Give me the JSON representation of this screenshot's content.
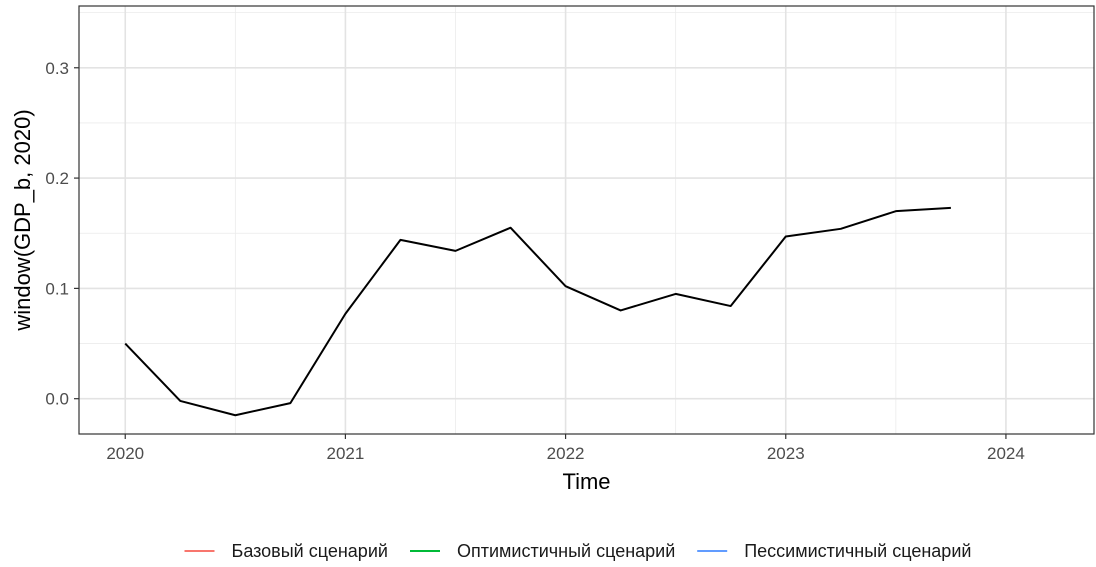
{
  "chart_data": {
    "type": "line",
    "title": "",
    "xlabel": "Time",
    "ylabel": "window(GDP_b, 2020)",
    "xlim": [
      2019.79,
      2024.4
    ],
    "ylim": [
      -0.032,
      0.356
    ],
    "x_ticks": [
      2020,
      2021,
      2022,
      2023,
      2024
    ],
    "x_tick_labels": [
      "2020",
      "2021",
      "2022",
      "2023",
      "2024"
    ],
    "y_ticks": [
      0.0,
      0.1,
      0.2,
      0.3
    ],
    "y_tick_labels": [
      "0.0",
      "0.1",
      "0.2",
      "0.3"
    ],
    "grid": true,
    "legend_position": "bottom",
    "series": [
      {
        "color": "#000000",
        "x": [
          2020.0,
          2020.25,
          2020.5,
          2020.75,
          2021.0,
          2021.25,
          2021.5,
          2021.75,
          2022.0,
          2022.25,
          2022.5,
          2022.75,
          2023.0,
          2023.25,
          2023.5,
          2023.75
        ],
        "y": [
          0.05,
          -0.002,
          -0.015,
          -0.004,
          0.077,
          0.144,
          0.134,
          0.155,
          0.102,
          0.08,
          0.095,
          0.084,
          0.147,
          0.154,
          0.17,
          0.173
        ]
      }
    ],
    "legend": [
      {
        "label": "Базовый сценарий",
        "color": "#F8766D"
      },
      {
        "label": "Оптимистичный сценарий",
        "color": "#00BA38"
      },
      {
        "label": "Пессимистичный сценарий",
        "color": "#619CFF"
      }
    ]
  }
}
